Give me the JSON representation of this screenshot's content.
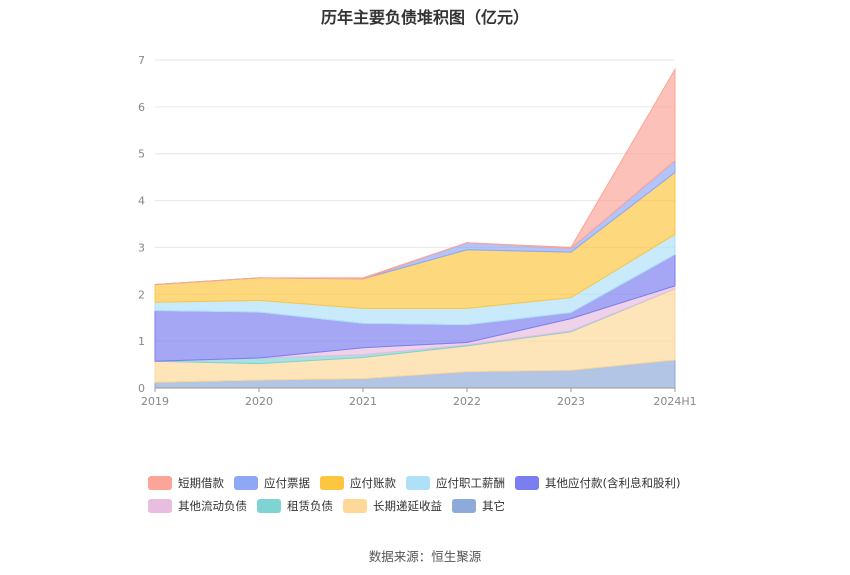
{
  "chart_data": {
    "type": "area",
    "stacked": true,
    "title": "历年主要负债堆积图（亿元）",
    "xlabel": "",
    "ylabel": "",
    "categories": [
      "2019",
      "2020",
      "2021",
      "2022",
      "2023",
      "2024H1"
    ],
    "yticks": [
      "0",
      "1",
      "2",
      "3",
      "4",
      "5",
      "6",
      "7"
    ],
    "ylim": [
      0,
      7
    ],
    "grid": true,
    "legend_position": "bottom",
    "series": [
      {
        "name": "其它",
        "color": "#8eaad8",
        "values": [
          0.12,
          0.17,
          0.2,
          0.35,
          0.38,
          0.6
        ]
      },
      {
        "name": "长期递延收益",
        "color": "#fdd898",
        "values": [
          0.45,
          0.35,
          0.45,
          0.55,
          0.82,
          1.52
        ]
      },
      {
        "name": "租赁负债",
        "color": "#7fd3d3",
        "values": [
          0.0,
          0.12,
          0.06,
          0.02,
          0.02,
          0.0
        ]
      },
      {
        "name": "其他流动负债",
        "color": "#e8bde0",
        "values": [
          0.0,
          0.0,
          0.15,
          0.05,
          0.26,
          0.06
        ]
      },
      {
        "name": "其他应付款(含利息和股利)",
        "color": "#7b7ef0",
        "values": [
          1.08,
          0.98,
          0.52,
          0.38,
          0.13,
          0.67
        ]
      },
      {
        "name": "应付职工薪酬",
        "color": "#aee0f8",
        "values": [
          0.18,
          0.25,
          0.32,
          0.35,
          0.32,
          0.43
        ]
      },
      {
        "name": "应付账款",
        "color": "#fcc640",
        "values": [
          0.38,
          0.48,
          0.63,
          1.25,
          0.97,
          1.32
        ]
      },
      {
        "name": "应付票据",
        "color": "#8ea8f8",
        "values": [
          0.0,
          0.0,
          0.0,
          0.15,
          0.08,
          0.25
        ]
      },
      {
        "name": "短期借款",
        "color": "#fba497",
        "values": [
          0.0,
          0.0,
          0.02,
          0.0,
          0.02,
          1.95
        ]
      }
    ],
    "legend_rows": [
      [
        "短期借款",
        "应付票据",
        "应付账款",
        "应付职工薪酬",
        "其他应付款(含利息和股利)"
      ],
      [
        "其他流动负债",
        "租赁负债",
        "长期递延收益",
        "其它"
      ]
    ],
    "source": "数据来源：恒生聚源"
  }
}
